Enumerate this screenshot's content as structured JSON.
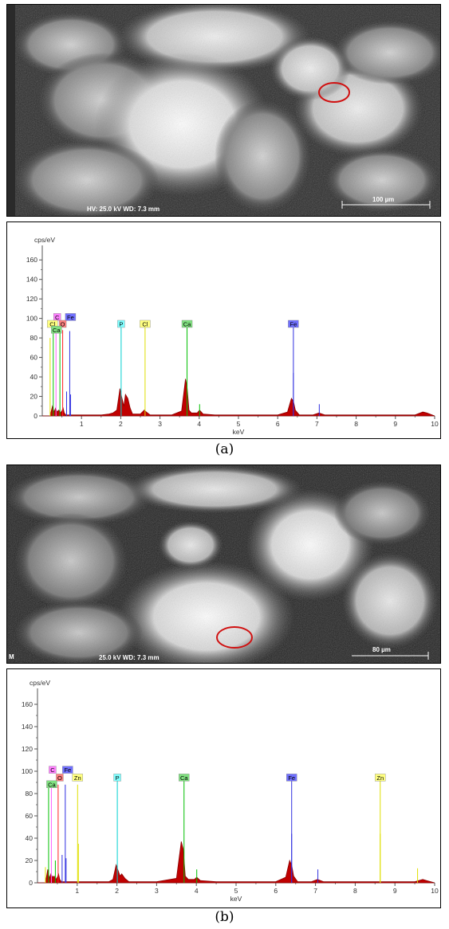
{
  "sem_a": {
    "info": "HV: 25.0 kV  WD: 7.3 mm",
    "scale": "100 µm"
  },
  "sem_b": {
    "info_left": "M",
    "info": "25.0 kV  WD: 7.3 mm",
    "scale": "80 µm"
  },
  "caption_a": "(a)",
  "caption_b": "(b)",
  "chart_data": [
    {
      "type": "line",
      "panel": "(a)",
      "ylabel": "cps/eV",
      "xlabel": "keV",
      "xlim": [
        0,
        10
      ],
      "ylim": [
        0,
        170
      ],
      "xticks": [
        1,
        2,
        3,
        4,
        5,
        6,
        7,
        8,
        9,
        10
      ],
      "yticks": [
        0,
        20,
        40,
        60,
        80,
        100,
        120,
        140,
        160
      ],
      "spectrum": {
        "x": [
          0.0,
          0.2,
          0.26,
          0.3,
          0.34,
          0.38,
          0.42,
          0.46,
          0.5,
          0.53,
          0.56,
          0.6,
          0.7,
          0.9,
          1.2,
          1.5,
          1.7,
          1.8,
          1.9,
          1.98,
          2.02,
          2.08,
          2.12,
          2.18,
          2.24,
          2.3,
          2.5,
          2.6,
          2.65,
          2.75,
          3.0,
          3.3,
          3.55,
          3.65,
          3.69,
          3.74,
          3.8,
          3.95,
          4.01,
          4.1,
          4.4,
          5.0,
          6.0,
          6.25,
          6.35,
          6.4,
          6.45,
          6.55,
          6.9,
          7.05,
          7.2,
          8.0,
          9.0,
          9.5,
          9.7,
          9.8,
          10.0
        ],
        "y": [
          0,
          0,
          10,
          4,
          8,
          4,
          6,
          3,
          5,
          8,
          3,
          1,
          1,
          1,
          1,
          1,
          2,
          3,
          6,
          28,
          20,
          10,
          22,
          18,
          8,
          2,
          2,
          6,
          4,
          1,
          1,
          1,
          5,
          38,
          30,
          6,
          3,
          3,
          6,
          2,
          1,
          1,
          1,
          4,
          18,
          15,
          6,
          1,
          1,
          3,
          1,
          1,
          1,
          1,
          4,
          3,
          0
        ]
      },
      "lines": [
        {
          "energy": 0.2,
          "height": 80,
          "color": "#e0e000"
        },
        {
          "energy": 0.28,
          "height": 85,
          "color": "#00c000"
        },
        {
          "energy": 0.35,
          "height": 90,
          "color": "#ff60ff"
        },
        {
          "energy": 0.45,
          "height": 85,
          "color": "#00c000"
        },
        {
          "energy": 0.52,
          "height": 88,
          "color": "#ff2020"
        },
        {
          "energy": 0.62,
          "height": 25,
          "color": "#3030e0"
        },
        {
          "energy": 0.7,
          "height": 87,
          "color": "#3030e0"
        },
        {
          "energy": 0.72,
          "height": 22,
          "color": "#3030e0"
        },
        {
          "energy": 2.01,
          "height": 95,
          "color": "#00d0d0"
        },
        {
          "energy": 2.62,
          "height": 95,
          "color": "#e0e000"
        },
        {
          "energy": 3.69,
          "height": 95,
          "color": "#00c000"
        },
        {
          "energy": 4.01,
          "height": 12,
          "color": "#00c000"
        },
        {
          "energy": 6.4,
          "height": 95,
          "color": "#3030e0"
        },
        {
          "energy": 6.4,
          "height": 44,
          "color": "#3030e0"
        },
        {
          "energy": 7.06,
          "height": 12,
          "color": "#3030e0"
        }
      ],
      "labels": [
        {
          "text": "C",
          "energy": 0.38,
          "y": 101,
          "color": "#ff80ff"
        },
        {
          "text": "Fe",
          "energy": 0.72,
          "y": 101,
          "color": "#7070ff"
        },
        {
          "text": "Cl",
          "energy": 0.26,
          "y": 94,
          "color": "#ffff80"
        },
        {
          "text": "O",
          "energy": 0.52,
          "y": 94,
          "color": "#ff8080"
        },
        {
          "text": "Ca",
          "energy": 0.36,
          "y": 88,
          "color": "#80e080"
        },
        {
          "text": "P",
          "energy": 2.01,
          "y": 94,
          "color": "#80ffff"
        },
        {
          "text": "Cl",
          "energy": 2.62,
          "y": 94,
          "color": "#ffff80"
        },
        {
          "text": "Ca",
          "energy": 3.69,
          "y": 94,
          "color": "#80e080"
        },
        {
          "text": "Fe",
          "energy": 6.4,
          "y": 94,
          "color": "#7070ff"
        }
      ]
    },
    {
      "type": "line",
      "panel": "(b)",
      "ylabel": "cps/eV",
      "xlabel": "keV",
      "xlim": [
        0,
        10
      ],
      "ylim": [
        0,
        170
      ],
      "xticks": [
        1,
        2,
        3,
        4,
        5,
        6,
        7,
        8,
        9,
        10
      ],
      "yticks": [
        0,
        20,
        40,
        60,
        80,
        100,
        120,
        140,
        160
      ],
      "spectrum": {
        "x": [
          0.0,
          0.2,
          0.26,
          0.3,
          0.34,
          0.38,
          0.42,
          0.46,
          0.5,
          0.53,
          0.56,
          0.6,
          0.7,
          1.0,
          1.2,
          1.5,
          1.8,
          1.9,
          1.98,
          2.02,
          2.08,
          2.12,
          2.2,
          2.3,
          2.5,
          3.0,
          3.5,
          3.62,
          3.67,
          3.72,
          3.8,
          3.95,
          4.01,
          4.1,
          4.5,
          5.0,
          6.0,
          6.25,
          6.35,
          6.4,
          6.45,
          6.55,
          6.9,
          7.05,
          7.2,
          8.0,
          8.6,
          9.0,
          9.5,
          9.7,
          9.8,
          10.0
        ],
        "y": [
          0,
          0,
          12,
          4,
          8,
          5,
          6,
          3,
          5,
          8,
          3,
          1,
          1,
          1,
          1,
          1,
          1,
          3,
          16,
          12,
          6,
          8,
          4,
          1,
          1,
          1,
          4,
          37,
          30,
          6,
          3,
          3,
          5,
          2,
          1,
          1,
          1,
          5,
          20,
          16,
          6,
          1,
          1,
          3,
          1,
          1,
          1,
          1,
          1,
          3,
          2,
          0
        ]
      },
      "lines": [
        {
          "energy": 0.2,
          "height": 14,
          "color": "#e0e000"
        },
        {
          "energy": 0.28,
          "height": 85,
          "color": "#00c000"
        },
        {
          "energy": 0.35,
          "height": 90,
          "color": "#ff60ff"
        },
        {
          "energy": 0.45,
          "height": 20,
          "color": "#00c000"
        },
        {
          "energy": 0.52,
          "height": 88,
          "color": "#ff2020"
        },
        {
          "energy": 0.62,
          "height": 25,
          "color": "#3030e0"
        },
        {
          "energy": 0.7,
          "height": 88,
          "color": "#3030e0"
        },
        {
          "energy": 0.72,
          "height": 22,
          "color": "#3030e0"
        },
        {
          "energy": 1.01,
          "height": 88,
          "color": "#e0e000"
        },
        {
          "energy": 1.03,
          "height": 35,
          "color": "#e0e000"
        },
        {
          "energy": 2.01,
          "height": 95,
          "color": "#00d0d0"
        },
        {
          "energy": 3.69,
          "height": 95,
          "color": "#00c000"
        },
        {
          "energy": 4.01,
          "height": 12,
          "color": "#00c000"
        },
        {
          "energy": 6.4,
          "height": 95,
          "color": "#3030e0"
        },
        {
          "energy": 6.4,
          "height": 44,
          "color": "#3030e0"
        },
        {
          "energy": 7.06,
          "height": 12,
          "color": "#3030e0"
        },
        {
          "energy": 8.63,
          "height": 93,
          "color": "#e0e000"
        },
        {
          "energy": 8.63,
          "height": 44,
          "color": "#e0e000"
        },
        {
          "energy": 9.57,
          "height": 13,
          "color": "#e0e000"
        }
      ],
      "labels": [
        {
          "text": "C",
          "energy": 0.38,
          "y": 101,
          "color": "#ff80ff"
        },
        {
          "text": "Fe",
          "energy": 0.76,
          "y": 101,
          "color": "#7070ff"
        },
        {
          "text": "O",
          "energy": 0.56,
          "y": 94,
          "color": "#ff8080"
        },
        {
          "text": "Zn",
          "energy": 1.01,
          "y": 94,
          "color": "#ffff80"
        },
        {
          "text": "Ca",
          "energy": 0.36,
          "y": 88,
          "color": "#80e080"
        },
        {
          "text": "P",
          "energy": 2.01,
          "y": 94,
          "color": "#80ffff"
        },
        {
          "text": "Ca",
          "energy": 3.69,
          "y": 94,
          "color": "#80e080"
        },
        {
          "text": "Fe",
          "energy": 6.4,
          "y": 94,
          "color": "#7070ff"
        },
        {
          "text": "Zn",
          "energy": 8.63,
          "y": 94,
          "color": "#ffff80"
        }
      ]
    }
  ]
}
